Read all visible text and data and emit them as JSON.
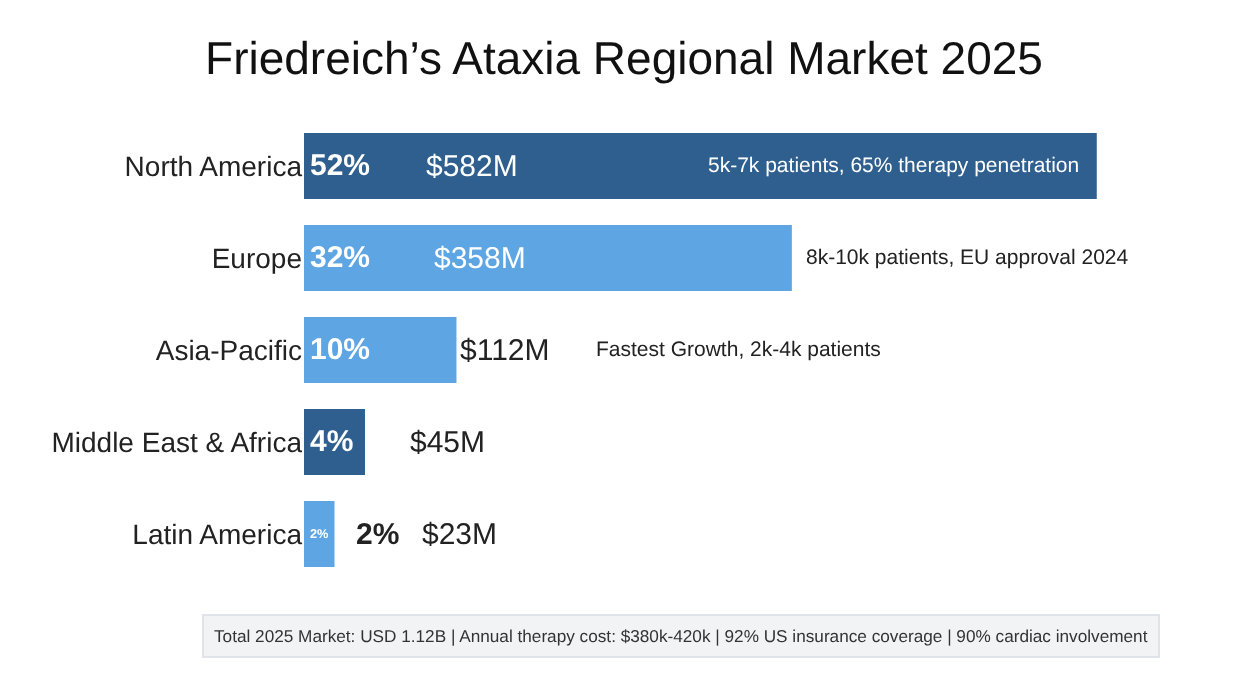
{
  "chart_data": {
    "type": "bar",
    "orientation": "horizontal",
    "title": "Friedreich’s Ataxia Regional Market 2025",
    "categories": [
      "North America",
      "Europe",
      "Asia-Pacific",
      "Middle East & Africa",
      "Latin America"
    ],
    "values": [
      52,
      32,
      10,
      4,
      2
    ],
    "value_labels": [
      "52%",
      "32%",
      "10%",
      "4%",
      "2%"
    ],
    "colors": [
      "#2e5f8e",
      "#5ea5e3",
      "#5ea5e3",
      "#2e5f8e",
      "#5ea5e3"
    ],
    "annotations": [
      "$582M",
      "5k-7k patients, 65% therapy penetration",
      "$358M",
      "8k-10k patients, EU approval 2024",
      "$112M",
      "Fastest Growth, 2k-4k patients",
      "$45M",
      "2%",
      "$23M",
      "Total 2025 Market: USD 1.12B | Annual therapy cost: $380k-420k | 92% US insurance coverage | 90% cardiac involvement"
    ]
  }
}
